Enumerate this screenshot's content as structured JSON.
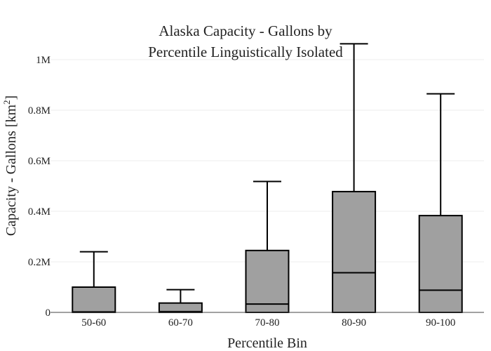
{
  "chart_data": {
    "type": "box",
    "title_lines": [
      "Alaska Capacity - Gallons by",
      "Percentile Linguistically Isolated"
    ],
    "xlabel": "Percentile Bin",
    "ylabel_main": "Capacity - Gallons  [km",
    "ylabel_sup": "2",
    "ylabel_end": "]",
    "categories": [
      "50-60",
      "60-70",
      "70-80",
      "80-90",
      "90-100"
    ],
    "boxes": [
      {
        "category": "50-60",
        "lower": 0,
        "q1": 0,
        "median": 2000,
        "q3": 100000,
        "upper": 240000
      },
      {
        "category": "60-70",
        "lower": 0,
        "q1": 0,
        "median": 3000,
        "q3": 37000,
        "upper": 90000
      },
      {
        "category": "70-80",
        "lower": 0,
        "q1": 0,
        "median": 33000,
        "q3": 245000,
        "upper": 518000
      },
      {
        "category": "80-90",
        "lower": 0,
        "q1": 0,
        "median": 157000,
        "q3": 478000,
        "upper": 1063000
      },
      {
        "category": "90-100",
        "lower": 0,
        "q1": 0,
        "median": 88000,
        "q3": 383000,
        "upper": 865000
      }
    ],
    "y_ticks": [
      {
        "value": 0,
        "label": "0"
      },
      {
        "value": 200000,
        "label": "0.2M"
      },
      {
        "value": 400000,
        "label": "0.4M"
      },
      {
        "value": 600000,
        "label": "0.6M"
      },
      {
        "value": 800000,
        "label": "0.8M"
      },
      {
        "value": 1000000,
        "label": "1M"
      }
    ],
    "ylim": [
      0,
      1000000
    ],
    "grid": true,
    "legend": false,
    "box_fill": "#a0a0a0",
    "line_color": "#000000",
    "grid_color": "#eeeeee"
  }
}
